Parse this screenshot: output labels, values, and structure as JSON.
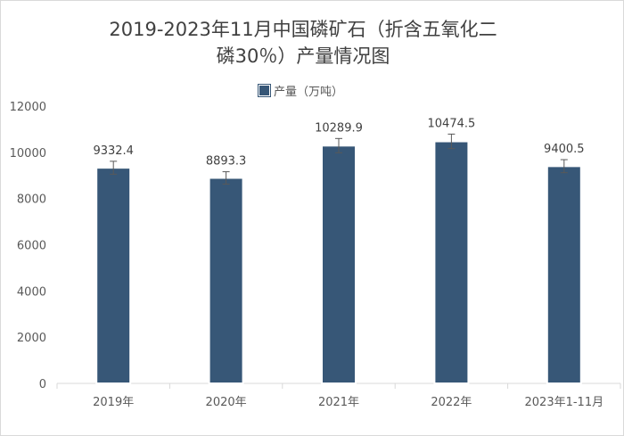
{
  "chart_data": {
    "type": "bar",
    "title": "2019-2023年11月中国磷矿石（折含五氧化二\n磷30％）产量情况图",
    "categories": [
      "2019年",
      "2020年",
      "2021年",
      "2022年",
      "2023年1-11月"
    ],
    "series": [
      {
        "name": "产量（万吨）",
        "values": [
          9332.4,
          8893.3,
          10289.9,
          10474.5,
          9400.5
        ]
      }
    ],
    "data_labels": [
      "9332.4",
      "8893.3",
      "10289.9",
      "10474.5",
      "9400.5"
    ],
    "error_bars": true,
    "ylim": [
      0,
      12000
    ],
    "yticks": [
      0,
      2000,
      4000,
      6000,
      8000,
      10000,
      12000
    ],
    "xlabel": "",
    "ylabel": "",
    "legend_position": "top-center",
    "grid": false,
    "colors": {
      "bar": "#375777",
      "bar_border": "#ffffff",
      "axis": "#d9d9d9",
      "text": "#595959",
      "error_bar": "#595959"
    }
  }
}
